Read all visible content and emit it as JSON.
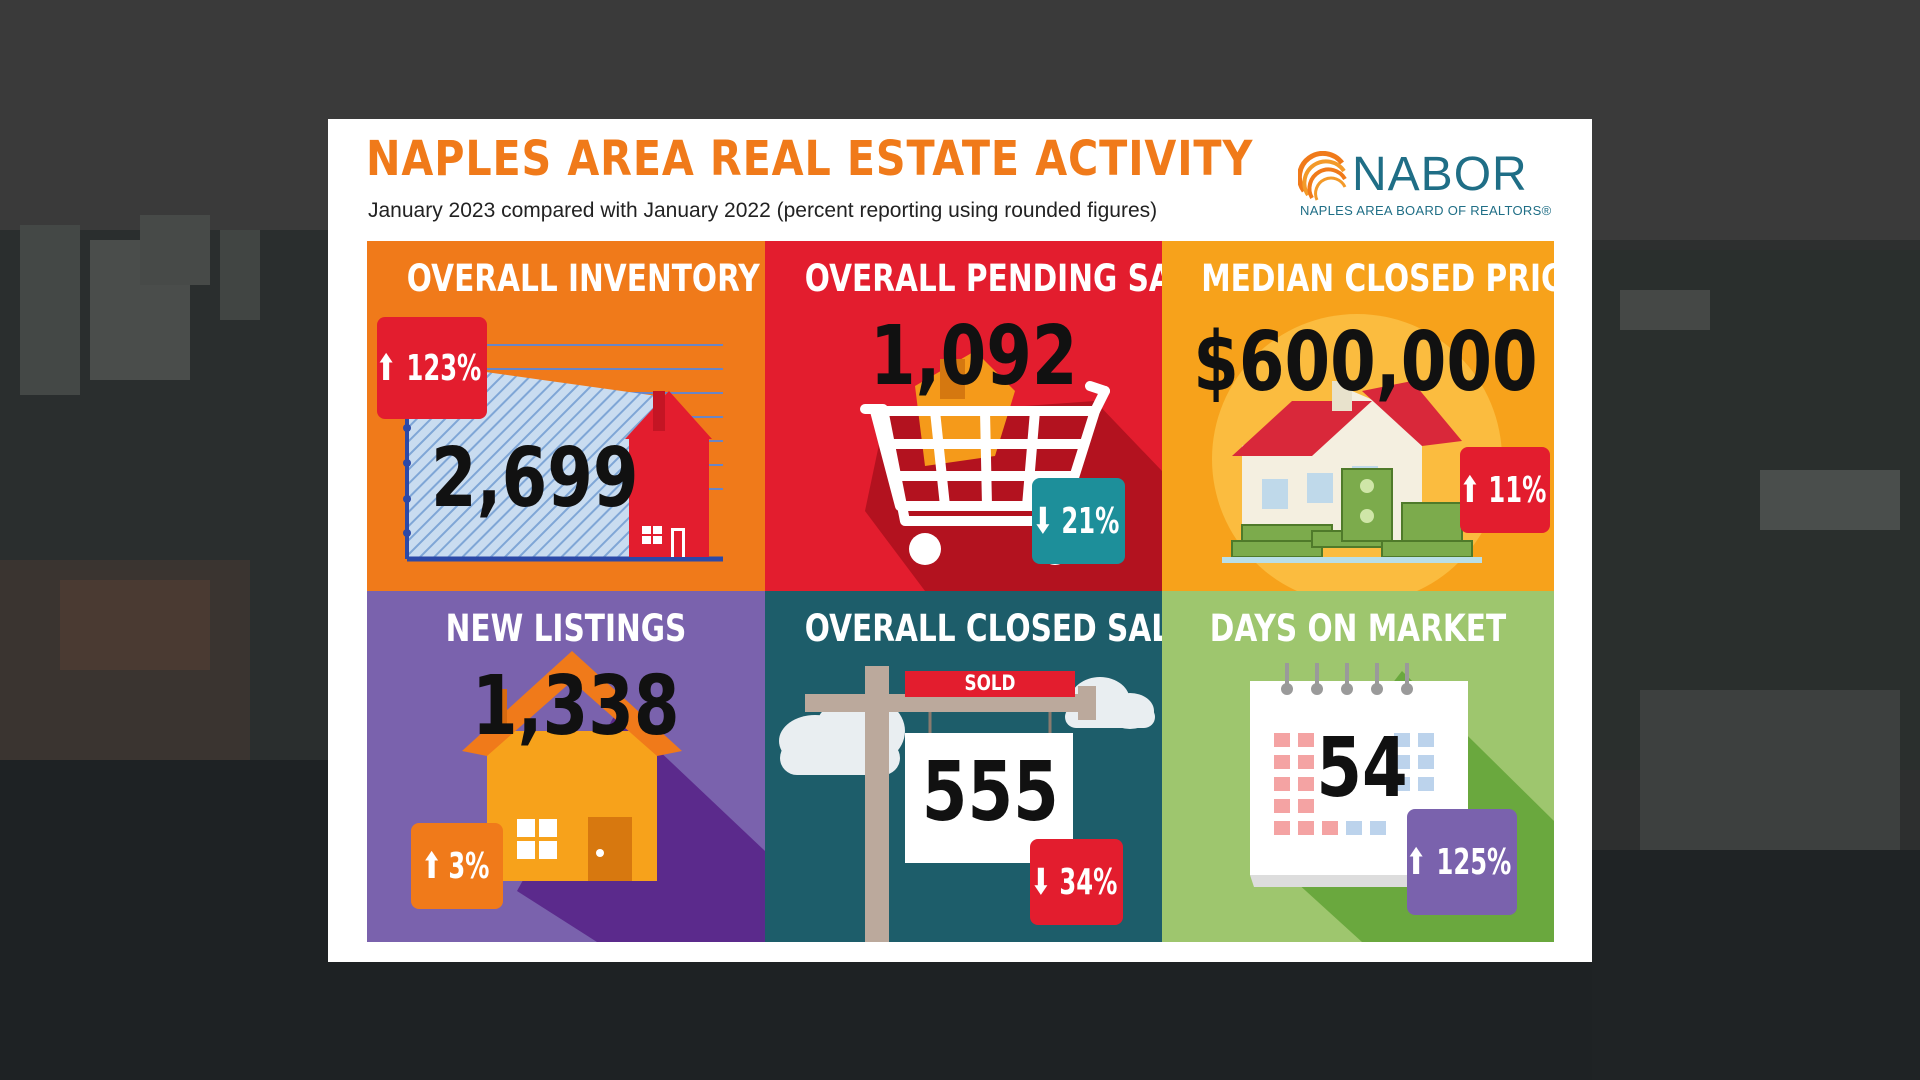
{
  "header": {
    "title": "NAPLES AREA REAL ESTATE ACTIVITY",
    "subtitle": "January 2023 compared with January 2022 (percent reporting using rounded figures)"
  },
  "logo": {
    "name": "NABOR",
    "tagline": "NAPLES AREA BOARD OF REALTORS®"
  },
  "tiles": [
    {
      "title": "OVERALL INVENTORY",
      "value": "2,699",
      "change": "123%",
      "direction": "up",
      "color": "#f07a1a",
      "badge_color": "#e31d2e",
      "icon": "house-chart-icon"
    },
    {
      "title": "OVERALL PENDING SALES",
      "value": "1,092",
      "change": "21%",
      "direction": "down",
      "color": "#e31d2e",
      "badge_color": "#1d8f9a",
      "icon": "shopping-cart-icon"
    },
    {
      "title": "MEDIAN CLOSED PRICE",
      "value": "$600,000",
      "change": "11%",
      "direction": "up",
      "color": "#f7a21b",
      "badge_color": "#e31d2e",
      "icon": "house-money-icon"
    },
    {
      "title": "NEW LISTINGS",
      "value": "1,338",
      "change": "3%",
      "direction": "up",
      "color": "#7a62ad",
      "badge_color": "#f07a1a",
      "icon": "house-icon"
    },
    {
      "title": "OVERALL CLOSED SALES",
      "value": "555",
      "change": "34%",
      "direction": "down",
      "color": "#1d5d6a",
      "badge_color": "#e31d2e",
      "icon": "sold-sign-icon"
    },
    {
      "title": "DAYS ON MARKET",
      "value": "54",
      "change": "125%",
      "direction": "up",
      "color": "#9ec66e",
      "badge_color": "#7a62ad",
      "icon": "calendar-icon"
    }
  ],
  "sold_label": "SOLD"
}
